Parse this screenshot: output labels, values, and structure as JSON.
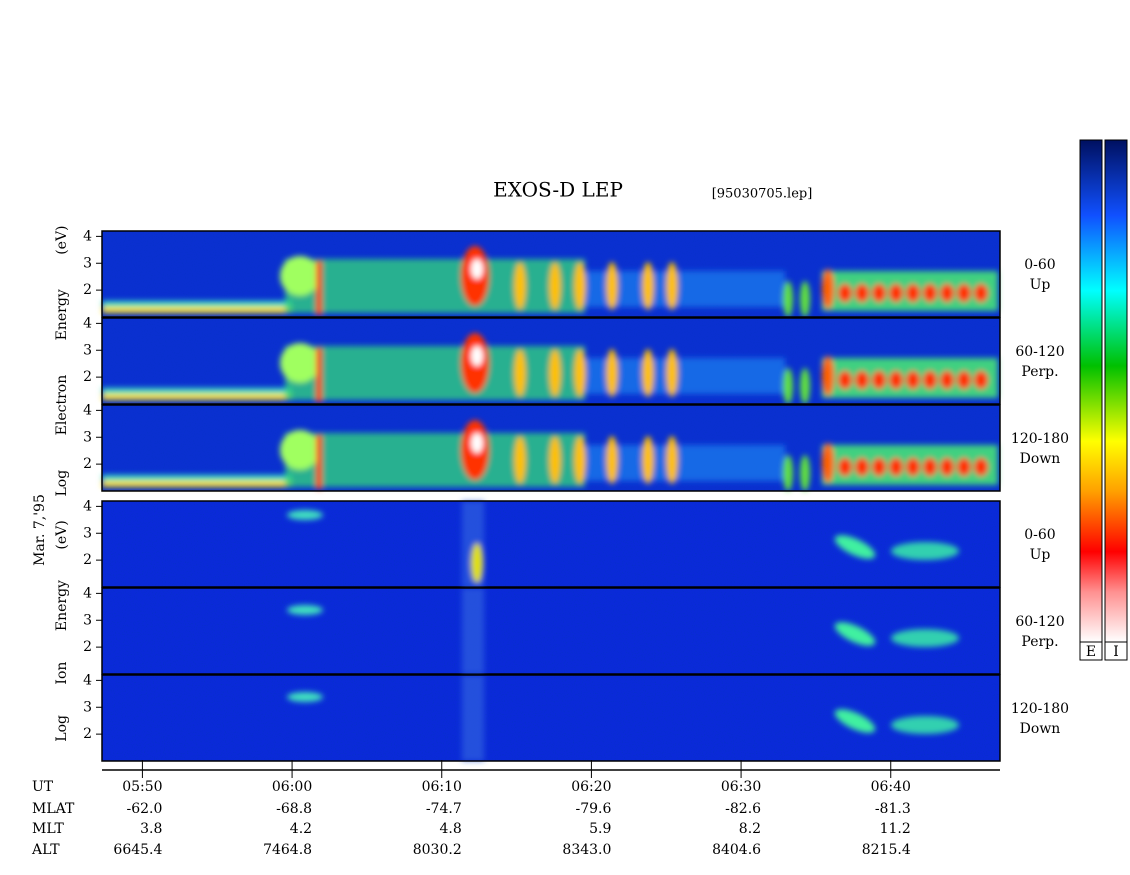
{
  "chart_data": {
    "type": "spectrogram",
    "title": "EXOS-D LEP",
    "file": "[95030705.lep]",
    "date": "Mar. 7,'95",
    "groups": [
      {
        "ylabel": "Log Electron Energy (eV)",
        "panels": [
          {
            "angle": "0-60",
            "direction": "Up"
          },
          {
            "angle": "60-120",
            "direction": "Perp."
          },
          {
            "angle": "120-180",
            "direction": "Down"
          }
        ]
      },
      {
        "ylabel": "Log Ion Energy (eV)",
        "panels": [
          {
            "angle": "0-60",
            "direction": "Up"
          },
          {
            "angle": "60-120",
            "direction": "Perp."
          },
          {
            "angle": "120-180",
            "direction": "Down"
          }
        ]
      }
    ],
    "ylim": [
      1,
      4.2
    ],
    "yticks": [
      2,
      3,
      4
    ],
    "xlim": [
      47.3,
      107.3
    ],
    "xticks": [
      {
        "value": 50,
        "label": "05:50"
      },
      {
        "value": 60,
        "label": "06:00"
      },
      {
        "value": 70,
        "label": "06:10"
      },
      {
        "value": 80,
        "label": "06:20"
      },
      {
        "value": 90,
        "label": "06:30"
      },
      {
        "value": 100,
        "label": "06:40"
      }
    ],
    "ephemeris": {
      "labels": [
        "UT",
        "MLAT",
        "MLT",
        "ALT"
      ],
      "rows": [
        [
          "-62.0",
          "-68.8",
          "-74.7",
          "-79.6",
          "-82.6",
          "-81.3"
        ],
        [
          "3.8",
          "4.2",
          "4.8",
          "5.9",
          "8.2",
          "11.2"
        ],
        [
          "6645.4",
          "7464.8",
          "8030.2",
          "8343.0",
          "8404.6",
          "8215.4"
        ]
      ]
    },
    "colorbars": [
      "E",
      "I"
    ]
  }
}
